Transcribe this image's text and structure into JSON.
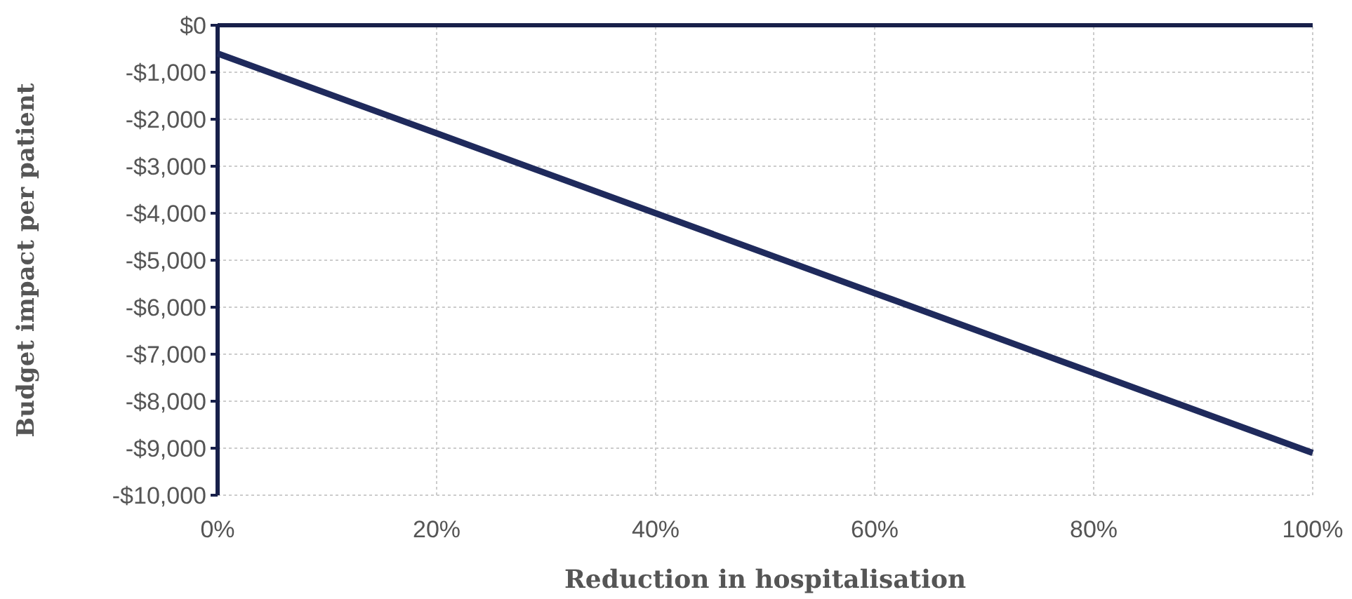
{
  "chart_data": {
    "type": "line",
    "xlabel": "Reduction in hospitalisation",
    "ylabel": "Budget impact per patient",
    "x": [
      0,
      20,
      40,
      60,
      80,
      100
    ],
    "series": [
      {
        "color": "#1f2a5c",
        "values": [
          -600,
          -2300,
          -4000,
          -5700,
          -7400,
          -9100
        ]
      }
    ],
    "xlim": [
      0,
      100
    ],
    "xticks": [
      {
        "value": 0,
        "label": "0%"
      },
      {
        "value": 20,
        "label": "20%"
      },
      {
        "value": 40,
        "label": "40%"
      },
      {
        "value": 60,
        "label": "60%"
      },
      {
        "value": 80,
        "label": "80%"
      },
      {
        "value": 100,
        "label": "100%"
      }
    ],
    "ylim": [
      -10000,
      0
    ],
    "yticks": [
      {
        "value": -10000,
        "label": "-$10,000"
      },
      {
        "value": -9000,
        "label": "-$9,000"
      },
      {
        "value": -8000,
        "label": "-$8,000"
      },
      {
        "value": -7000,
        "label": "-$7,000"
      },
      {
        "value": -6000,
        "label": "-$6,000"
      },
      {
        "value": -5000,
        "label": "-$5,000"
      },
      {
        "value": -4000,
        "label": "-$4,000"
      },
      {
        "value": -3000,
        "label": "-$3,000"
      },
      {
        "value": -2000,
        "label": "-$2,000"
      },
      {
        "value": -1000,
        "label": "-$1,000"
      },
      {
        "value": 0,
        "label": "$0"
      }
    ],
    "grid": true,
    "marker": "none",
    "line_style": "solid"
  }
}
